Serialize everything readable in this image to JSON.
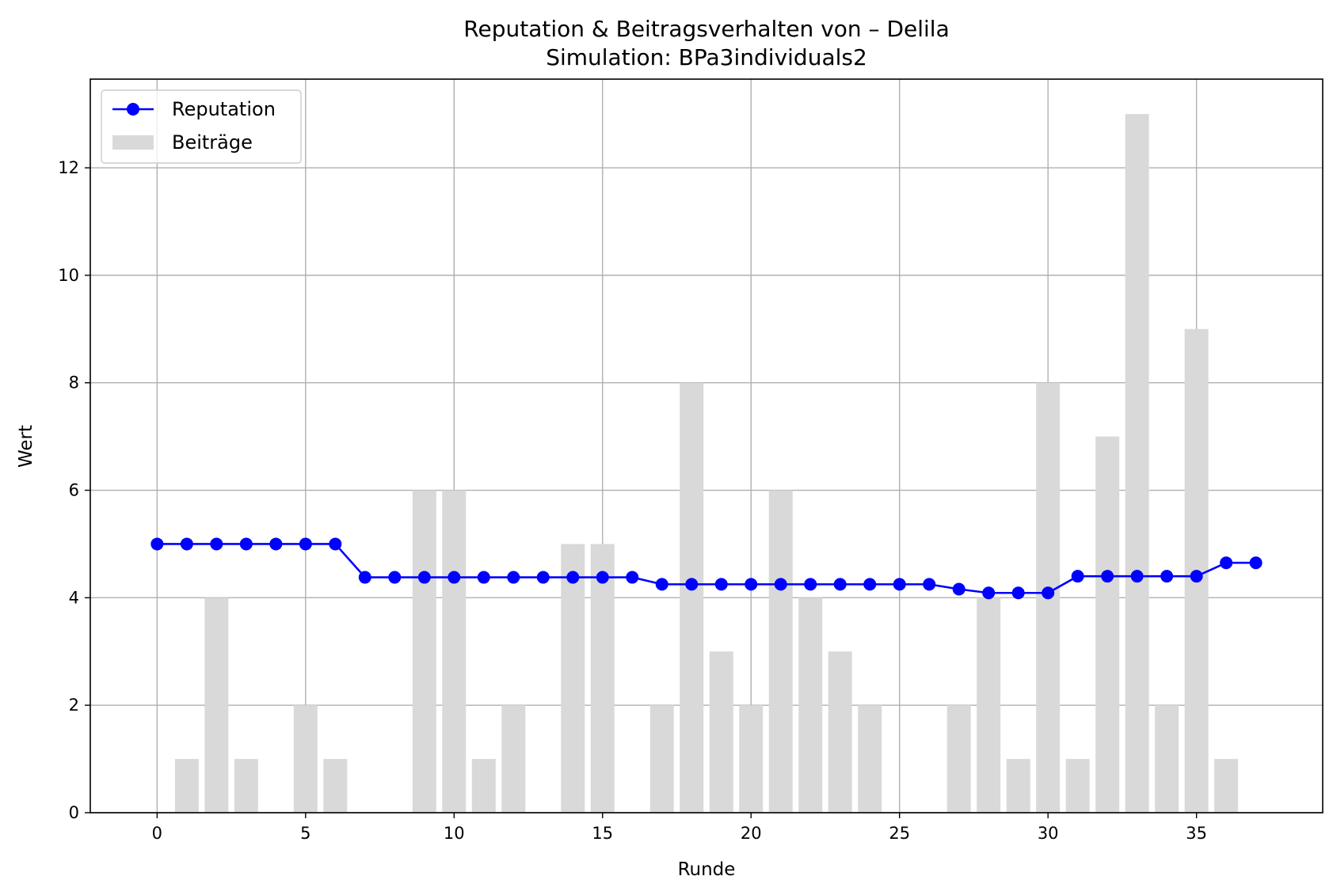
{
  "chart_data": {
    "type": "bar+line",
    "title": "Reputation & Beitragsverhalten von – Delila",
    "subtitle": "Simulation: BPa3individuals2",
    "xlabel": "Runde",
    "ylabel": "Wert",
    "xlim": [
      -2.25,
      39.25
    ],
    "ylim": [
      0,
      13.65
    ],
    "xticks": [
      0,
      5,
      10,
      15,
      20,
      25,
      30,
      35
    ],
    "yticks": [
      0,
      2,
      4,
      6,
      8,
      10,
      12
    ],
    "grid": true,
    "legend_position": "top-left",
    "x": [
      0,
      1,
      2,
      3,
      4,
      5,
      6,
      7,
      8,
      9,
      10,
      11,
      12,
      13,
      14,
      15,
      16,
      17,
      18,
      19,
      20,
      21,
      22,
      23,
      24,
      25,
      26,
      27,
      28,
      29,
      30,
      31,
      32,
      33,
      34,
      35,
      36,
      37
    ],
    "series": [
      {
        "name": "Reputation",
        "kind": "line",
        "color": "#0000ff",
        "marker": "circle",
        "values": [
          5,
          5,
          5,
          5,
          5,
          5,
          5,
          4.38,
          4.38,
          4.38,
          4.38,
          4.38,
          4.38,
          4.38,
          4.38,
          4.38,
          4.38,
          4.25,
          4.25,
          4.25,
          4.25,
          4.25,
          4.25,
          4.25,
          4.25,
          4.25,
          4.25,
          4.16,
          4.09,
          4.09,
          4.09,
          4.4,
          4.4,
          4.4,
          4.4,
          4.4,
          4.65,
          4.65
        ]
      },
      {
        "name": "Beiträge",
        "kind": "bar",
        "color": "#d9d9d9",
        "values": [
          0,
          1,
          4,
          1,
          0,
          2,
          1,
          0,
          0,
          6,
          6,
          1,
          2,
          0,
          5,
          5,
          0,
          2,
          8,
          3,
          2,
          6,
          4,
          3,
          2,
          0,
          0,
          2,
          4,
          1,
          8,
          1,
          7,
          13,
          2,
          9,
          1,
          0
        ]
      }
    ]
  }
}
